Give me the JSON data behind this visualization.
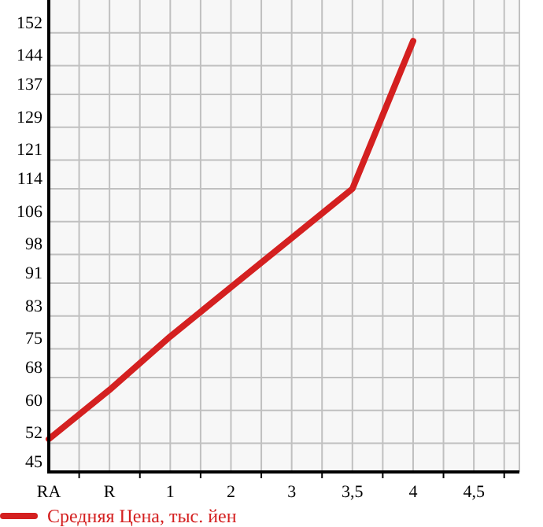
{
  "chart_data": {
    "type": "line",
    "categories": [
      "RA",
      "R",
      "1",
      "2",
      "3",
      "3,5",
      "4",
      "4,5"
    ],
    "series": [
      {
        "name": "Средняя Цена, тыс. йен",
        "color": "#d42020",
        "values": [
          53,
          65,
          78,
          90,
          102,
          114,
          150,
          null
        ]
      }
    ],
    "ylim": [
      45,
      160
    ],
    "yticks": [
      45,
      52,
      60,
      68,
      75,
      83,
      91,
      98,
      106,
      114,
      121,
      129,
      137,
      144,
      152
    ],
    "grid": true,
    "legend": "bottom",
    "marker": "none",
    "line_style": "solid"
  }
}
